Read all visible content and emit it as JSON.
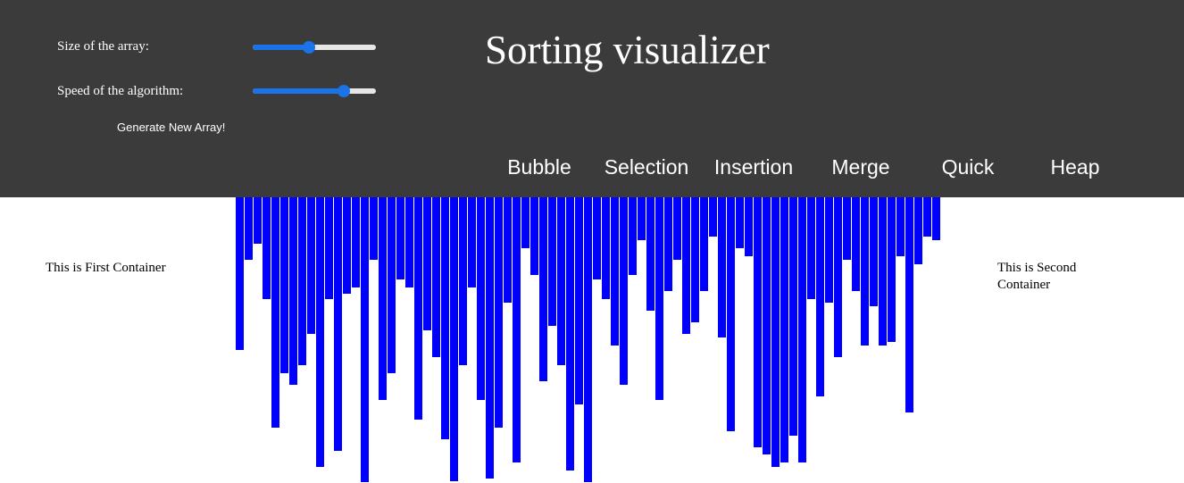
{
  "controls": {
    "size_label": "Size of the array:",
    "speed_label": "Speed of the algorithm:",
    "size_value": 0.46,
    "speed_value": 0.74,
    "generate_label": "Generate New Array!"
  },
  "title": "Sorting visualizer",
  "algorithms": [
    "Bubble",
    "Selection",
    "Insertion",
    "Merge",
    "Quick",
    "Heap"
  ],
  "containers": {
    "first": "This is First Container",
    "second": "This is Second Container"
  },
  "colors": {
    "header_bg": "#3b3b3b",
    "bar": "#0000ff",
    "slider_accent": "#1a73e8"
  },
  "array_values": [
    171,
    70,
    52,
    114,
    258,
    197,
    210,
    188,
    153,
    302,
    114,
    284,
    108,
    101,
    319,
    70,
    227,
    197,
    92,
    101,
    249,
    149,
    179,
    271,
    318,
    188,
    101,
    227,
    315,
    258,
    118,
    297,
    57,
    87,
    206,
    144,
    188,
    306,
    232,
    319,
    92,
    114,
    166,
    210,
    87,
    48,
    127,
    227,
    105,
    70,
    153,
    140,
    105,
    44,
    157,
    262,
    57,
    66,
    280,
    288,
    302,
    297,
    267,
    297,
    114,
    223,
    118,
    179,
    70,
    105,
    166,
    122,
    166,
    162,
    66,
    241,
    75,
    44,
    48
  ]
}
